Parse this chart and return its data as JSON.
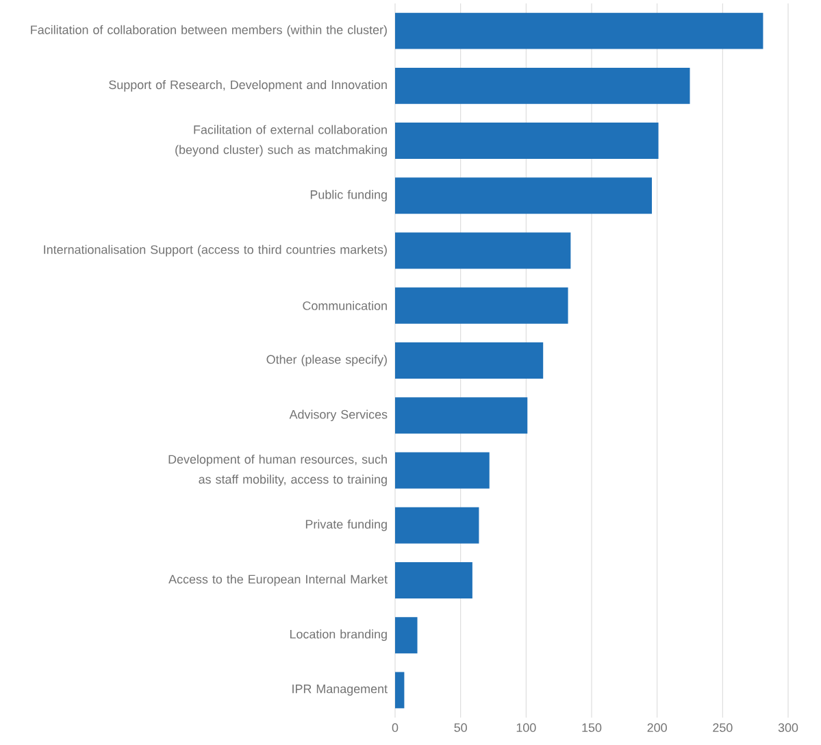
{
  "chart_data": {
    "type": "bar",
    "orientation": "horizontal",
    "categories": [
      "Facilitation of collaboration between members (within the cluster)",
      "Support of Research, Development and Innovation",
      "Facilitation of external collaboration (beyond cluster) such as matchmaking",
      "Public funding",
      "Internationalisation Support (access to third countries markets)",
      "Communication",
      "Other (please specify)",
      "Advisory Services",
      "Development of human resources, such as staff mobility, access to training",
      "Private funding",
      "Access to the European Internal Market",
      "Location branding",
      "IPR Management"
    ],
    "values": [
      281,
      225,
      201,
      196,
      134,
      132,
      113,
      101,
      72,
      64,
      59,
      17,
      7
    ],
    "color": "#1f71b8",
    "xlim": [
      0,
      300
    ],
    "xticks": [
      0,
      50,
      100,
      150,
      200,
      250,
      300
    ],
    "grid": "x"
  }
}
